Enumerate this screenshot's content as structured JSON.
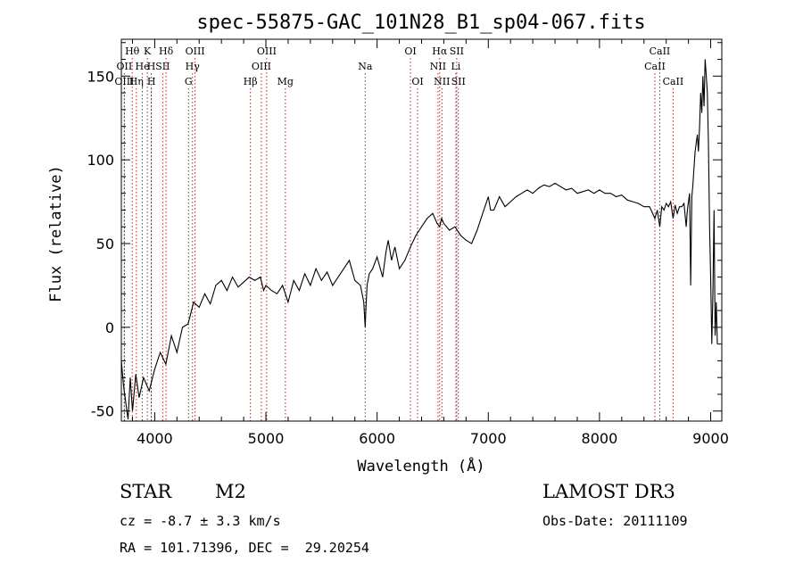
{
  "chart_data": {
    "type": "line",
    "title": "spec-55875-GAC_101N28_B1_sp04-067.fits",
    "xlabel": "Wavelength (Å)",
    "ylabel": "Flux (relative)",
    "xlim": [
      3700,
      9100
    ],
    "ylim": [
      -56,
      172
    ],
    "xticks": [
      4000,
      5000,
      6000,
      7000,
      8000,
      9000
    ],
    "yticks": [
      -50,
      0,
      50,
      100,
      150
    ],
    "grid": false,
    "legend": "none",
    "line_color": "#000000",
    "marker_color": "#b22222",
    "series": [
      {
        "values_x": [
          3700,
          3720,
          3740,
          3760,
          3780,
          3800,
          3830,
          3860,
          3900,
          3950,
          4000,
          4050,
          4100,
          4150,
          4200,
          4250,
          4300,
          4350,
          4400,
          4450,
          4500,
          4550,
          4600,
          4650,
          4700,
          4750,
          4800,
          4850,
          4900,
          4950,
          4980,
          5000,
          5050,
          5100,
          5150,
          5200,
          5250,
          5300,
          5350,
          5400,
          5450,
          5500,
          5550,
          5600,
          5650,
          5700,
          5750,
          5800,
          5850,
          5880,
          5893,
          5900,
          5910,
          5930,
          5960,
          6000,
          6050,
          6080,
          6100,
          6130,
          6160,
          6200,
          6250,
          6300,
          6350,
          6400,
          6450,
          6500,
          6540,
          6563,
          6580,
          6600,
          6650,
          6700,
          6750,
          6800,
          6850,
          6900,
          6950,
          7000,
          7020,
          7050,
          7100,
          7150,
          7200,
          7250,
          7300,
          7350,
          7400,
          7450,
          7500,
          7550,
          7600,
          7650,
          7700,
          7750,
          7800,
          7850,
          7900,
          7950,
          8000,
          8050,
          8100,
          8150,
          8200,
          8250,
          8300,
          8350,
          8400,
          8450,
          8498,
          8520,
          8542,
          8560,
          8580,
          8600,
          8620,
          8640,
          8662,
          8680,
          8700,
          8720,
          8740,
          8760,
          8780,
          8790,
          8800,
          8810,
          8820,
          8830,
          8840,
          8850,
          8860,
          8870,
          8880,
          8890,
          8900,
          8910,
          8920,
          8930,
          8940,
          8950,
          8960,
          8970,
          8980,
          8990,
          9000,
          9010,
          9020,
          9030,
          9040,
          9050,
          9060
        ],
        "values_y": [
          -20,
          -35,
          -45,
          -55,
          -30,
          -50,
          -28,
          -42,
          -30,
          -38,
          -25,
          -15,
          -22,
          -5,
          -15,
          0,
          2,
          15,
          12,
          20,
          14,
          25,
          28,
          22,
          30,
          24,
          27,
          30,
          28,
          30,
          22,
          25,
          22,
          20,
          25,
          15,
          28,
          22,
          32,
          25,
          35,
          28,
          33,
          25,
          30,
          35,
          40,
          28,
          25,
          15,
          0,
          12,
          25,
          32,
          35,
          42,
          30,
          45,
          52,
          40,
          48,
          35,
          40,
          48,
          55,
          60,
          65,
          68,
          62,
          60,
          65,
          62,
          58,
          60,
          55,
          52,
          50,
          58,
          68,
          78,
          70,
          70,
          78,
          72,
          75,
          78,
          80,
          82,
          80,
          83,
          85,
          84,
          86,
          84,
          82,
          83,
          80,
          81,
          82,
          80,
          82,
          80,
          80,
          78,
          79,
          76,
          75,
          74,
          72,
          72,
          65,
          70,
          60,
          72,
          70,
          74,
          72,
          75,
          65,
          73,
          68,
          72,
          72,
          74,
          60,
          70,
          75,
          80,
          25,
          78,
          85,
          95,
          105,
          110,
          115,
          105,
          120,
          140,
          128,
          150,
          132,
          160,
          150,
          140,
          110,
          60,
          30,
          -10,
          20,
          70,
          -5,
          15,
          -10
        ]
      }
    ],
    "spectral_lines": [
      {
        "name": "Hθ",
        "wavelength": 3798,
        "row": 1
      },
      {
        "name": "K",
        "wavelength": 3934,
        "row": 1
      },
      {
        "name": "Hδ",
        "wavelength": 4102,
        "row": 1
      },
      {
        "name": "OIII",
        "wavelength": 4363,
        "row": 1
      },
      {
        "name": "OIII",
        "wavelength": 5007,
        "row": 1
      },
      {
        "name": "OI",
        "wavelength": 6300,
        "row": 1
      },
      {
        "name": "Hα",
        "wavelength": 6563,
        "row": 1
      },
      {
        "name": "SII",
        "wavelength": 6716,
        "row": 1
      },
      {
        "name": "CaII",
        "wavelength": 8542,
        "row": 1
      },
      {
        "name": "OII",
        "wavelength": 3727,
        "row": 2
      },
      {
        "name": "H",
        "wavelength": 3969,
        "row": 2
      },
      {
        "name": "He",
        "wavelength": 3889,
        "row": 2
      },
      {
        "name": "SII",
        "wavelength": 4072,
        "row": 2
      },
      {
        "name": "Hγ",
        "wavelength": 4340,
        "row": 2
      },
      {
        "name": "OIII",
        "wavelength": 4959,
        "row": 2
      },
      {
        "name": "Na",
        "wavelength": 5893,
        "row": 2
      },
      {
        "name": "NII",
        "wavelength": 6548,
        "row": 2
      },
      {
        "name": "Li",
        "wavelength": 6708,
        "row": 2
      },
      {
        "name": "CaII",
        "wavelength": 8498,
        "row": 2
      },
      {
        "name": "OIII",
        "wavelength": 3727,
        "row": 3
      },
      {
        "name": "Hη",
        "wavelength": 3835,
        "row": 3
      },
      {
        "name": "H",
        "wavelength": 3970,
        "row": 3
      },
      {
        "name": "G",
        "wavelength": 4304,
        "row": 3
      },
      {
        "name": "Hβ",
        "wavelength": 4861,
        "row": 3
      },
      {
        "name": "Mg",
        "wavelength": 5175,
        "row": 3
      },
      {
        "name": "OI",
        "wavelength": 6364,
        "row": 3
      },
      {
        "name": "NII",
        "wavelength": 6583,
        "row": 3
      },
      {
        "name": "SII",
        "wavelength": 6731,
        "row": 3
      },
      {
        "name": "CaII",
        "wavelength": 8662,
        "row": 3
      }
    ]
  },
  "info": {
    "class": "STAR",
    "subclass": "M2",
    "survey": "LAMOST DR3",
    "redshift": "cz = -8.7 ± 3.3 km/s",
    "obs_date": "Obs-Date: 20111109",
    "coords": "RA = 101.71396, DEC =  29.20254"
  }
}
